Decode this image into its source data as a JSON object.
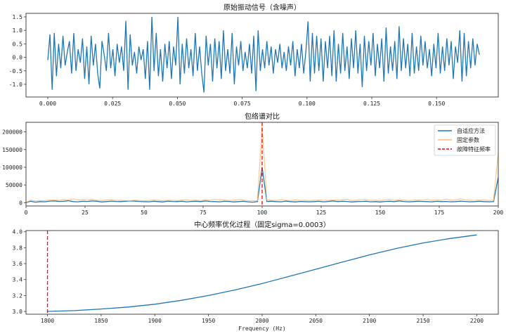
{
  "chart_data": [
    {
      "type": "line",
      "title": "原始振动信号（含噪声）",
      "xlabel": "",
      "ylabel": "",
      "xlim": [
        -0.0084,
        0.1738
      ],
      "ylim": [
        -1.47,
        1.63
      ],
      "xticks": [
        0.0,
        0.025,
        0.05,
        0.075,
        0.1,
        0.125,
        0.15
      ],
      "xtick_labels": [
        "0.000",
        "0.025",
        "0.050",
        "0.075",
        "0.100",
        "0.125",
        "0.150"
      ],
      "yticks": [
        -1.0,
        -0.5,
        0.0,
        0.5,
        1.0,
        1.5
      ],
      "ytick_labels": [
        "-1.0",
        "-0.5",
        "0.0",
        "0.5",
        "1.0",
        "1.5"
      ],
      "grid": false,
      "series": [
        {
          "color": "#1f77b4",
          "x_range": [
            0,
            0.1665
          ],
          "values": [
            -0.1,
            0.85,
            -1.2,
            0.9,
            -0.7,
            0.5,
            -0.4,
            0.8,
            -0.3,
            0.2,
            0.6,
            -0.6,
            0.9,
            -0.5,
            0.3,
            -0.2,
            0.7,
            -0.8,
            0.4,
            -1.0,
            0.8,
            -0.3,
            0.5,
            -0.6,
            -1.15,
            0.6,
            0.1,
            -0.5,
            0.9,
            -0.4,
            0.3,
            -0.7,
            0.5,
            -0.2,
            0.4,
            -0.5,
            1.35,
            -1.2,
            0.85,
            -0.3,
            0.2,
            -0.6,
            0.4,
            -0.1,
            0.3,
            -0.8,
            0.6,
            -1.2,
            1.5,
            -0.5,
            0.9,
            -0.7,
            0.3,
            -0.9,
            0.5,
            -0.4,
            0.6,
            -0.8,
            0.4,
            -0.3,
            1.5,
            -1.0,
            0.5,
            -0.6,
            0.7,
            -0.4,
            0.3,
            -0.7,
            0.9,
            -0.5,
            0.4,
            -0.6,
            -1.3,
            0.8,
            -0.3,
            0.5,
            -0.9,
            0.7,
            -0.4,
            0.6,
            -0.8,
            1.0,
            -0.5,
            0.3,
            -0.6,
            0.9,
            -1.0,
            0.4,
            -0.3,
            0.6,
            -0.5,
            0.2,
            -0.4,
            0.5,
            -0.6,
            0.8,
            -1.25,
            1.0,
            -0.5,
            0.3,
            -0.4,
            0.6,
            -0.3,
            0.4,
            -0.6,
            0.3,
            -0.2,
            0.5,
            -0.4,
            0.2,
            -0.5,
            0.4,
            -0.3,
            0.6,
            -0.7,
            0.3,
            -0.4,
            0.5,
            -0.6,
            0.2,
            1.33,
            -0.9,
            0.9,
            -0.6,
            0.8,
            -0.5,
            0.7,
            -0.9,
            0.6,
            -0.4,
            0.8,
            -0.7,
            1.0,
            -0.9,
            0.5,
            -0.6,
            0.9,
            -0.5,
            0.4,
            -0.8,
            0.7,
            -0.4,
            1.0,
            -0.6,
            0.5,
            -1.1,
            0.8,
            -0.5,
            0.6,
            -0.3,
            0.9,
            -0.7,
            0.5,
            -0.4,
            0.7,
            -0.9,
            1.1,
            -0.6,
            0.4,
            -0.5,
            0.6,
            -0.8,
            1.15,
            -0.5,
            0.7,
            -0.4,
            0.5,
            -0.7,
            0.9,
            -0.6,
            0.4,
            -0.5,
            0.8,
            -0.3,
            0.6,
            -0.4,
            0.3,
            -0.7,
            0.5,
            -0.4,
            0.9,
            -0.6,
            0.4,
            -0.5,
            0.7,
            -0.3,
            0.6,
            -0.8,
            0.4,
            -0.2,
            1.0,
            -0.9,
            0.9,
            -0.7,
            0.6,
            -0.4,
            0.7,
            -0.3,
            0.5,
            0.1
          ]
        }
      ]
    },
    {
      "type": "line",
      "title": "包络谱对比",
      "xlabel": "",
      "ylabel": "",
      "xlim": [
        0,
        200
      ],
      "ylim": [
        -9300,
        227000
      ],
      "xticks": [
        0,
        25,
        50,
        75,
        100,
        125,
        150,
        175,
        200
      ],
      "xtick_labels": [
        "0",
        "25",
        "50",
        "75",
        "100",
        "125",
        "150",
        "175",
        "200"
      ],
      "yticks": [
        0,
        50000,
        100000,
        150000,
        200000
      ],
      "ytick_labels": [
        "0",
        "50000",
        "100000",
        "150000",
        "200000"
      ],
      "grid": false,
      "legend": "top-right",
      "series": [
        {
          "name": "自适应方法",
          "color": "#1f77b4",
          "x_range": [
            0,
            200
          ],
          "values": [
            0,
            4000,
            1500,
            3000,
            2500,
            4500,
            5000,
            3500,
            4000,
            5500,
            3000,
            2500,
            4000,
            3500,
            5000,
            4000,
            2000,
            3000,
            4500,
            3500,
            3000,
            4000,
            5000,
            4500,
            3500,
            3000,
            2500,
            4000,
            3000,
            2000,
            4500,
            3500,
            3000,
            4000,
            2500,
            3500,
            4000,
            3000,
            5000,
            3500,
            3000,
            2500,
            4000,
            3500,
            2000,
            3000,
            4000,
            2500,
            1500,
            3000,
            100000,
            3500,
            4000,
            3000,
            2500,
            4500,
            3000,
            2000,
            3500,
            3000,
            2500,
            3000,
            4000,
            2500,
            3500,
            5000,
            3000,
            4000,
            3500,
            2000,
            3000,
            3500,
            4000,
            2500,
            3000,
            2000,
            3500,
            4000,
            3000,
            5000,
            3500,
            2500,
            3000,
            4000,
            3500,
            3000,
            2500,
            4000,
            3000,
            3500,
            2500,
            3000,
            4500,
            3500,
            2500,
            3000,
            4000,
            3000,
            2500,
            3000,
            72000
          ]
        },
        {
          "name": "固定参数",
          "color": "#ffbb78",
          "x_range": [
            0,
            200
          ],
          "values": [
            1000,
            7000,
            5000,
            6000,
            5500,
            8000,
            7500,
            6500,
            9000,
            8000,
            11000,
            7500,
            9000,
            8000,
            10000,
            7000,
            6000,
            7500,
            8500,
            6500,
            7000,
            6000,
            5500,
            7000,
            6500,
            5000,
            6000,
            7500,
            6500,
            5500,
            6500,
            7000,
            6000,
            7500,
            8000,
            6500,
            7500,
            6000,
            9000,
            7000,
            10000,
            7500,
            8000,
            6500,
            7000,
            9000,
            7500,
            6000,
            5500,
            6000,
            215000,
            8000,
            7000,
            6500,
            8500,
            7000,
            6000,
            8500,
            6500,
            7000,
            5500,
            6500,
            8000,
            7000,
            6500,
            8000,
            7000,
            8500,
            9500,
            6000,
            7000,
            8500,
            9000,
            6500,
            7000,
            6000,
            8000,
            9500,
            7000,
            8500,
            7500,
            6000,
            7000,
            8000,
            7500,
            9000,
            6500,
            8500,
            7000,
            10000,
            6500,
            7500,
            11000,
            8000,
            6500,
            7000,
            8000,
            7500,
            6000,
            7000,
            141000
          ]
        }
      ],
      "vlines": [
        {
          "name": "故障特征频率",
          "x": 100,
          "color": "#ff0000",
          "style": "dashed"
        }
      ]
    },
    {
      "type": "line",
      "title": "中心频率优化过程（固定sigma=0.0003）",
      "xlabel": "Frequency (Hz)",
      "ylabel": "",
      "xlim": [
        1780,
        2220
      ],
      "ylim": [
        2.965,
        4.015
      ],
      "xticks": [
        1800,
        1850,
        1900,
        1950,
        2000,
        2050,
        2100,
        2150,
        2200
      ],
      "xtick_labels": [
        "1800",
        "1850",
        "1900",
        "1950",
        "2000",
        "2050",
        "2100",
        "2150",
        "2200"
      ],
      "yticks": [
        3.0,
        3.2,
        3.4,
        3.6,
        3.8,
        4.0
      ],
      "ytick_labels": [
        "3.0",
        "3.2",
        "3.4",
        "3.6",
        "3.8",
        "4.0"
      ],
      "grid": false,
      "series": [
        {
          "color": "#1f77b4",
          "x": [
            1800,
            1825,
            1850,
            1875,
            1900,
            1925,
            1950,
            1975,
            2000,
            2025,
            2050,
            2075,
            2100,
            2125,
            2150,
            2175,
            2200
          ],
          "values": [
            3.0,
            3.01,
            3.03,
            3.055,
            3.09,
            3.14,
            3.2,
            3.27,
            3.35,
            3.44,
            3.53,
            3.62,
            3.71,
            3.79,
            3.86,
            3.915,
            3.96
          ]
        }
      ],
      "vlines": [
        {
          "x": 1800,
          "color": "#ff0000",
          "style": "dashed"
        }
      ]
    }
  ]
}
